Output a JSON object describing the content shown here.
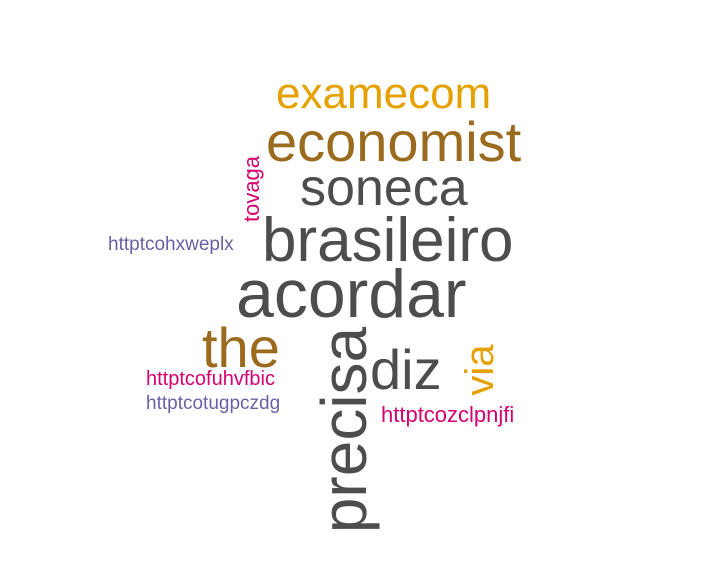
{
  "colors": {
    "gray": "#4d4d4d",
    "brown": "#9a6b1e",
    "gold": "#e5a100",
    "magenta": "#d6006f",
    "purple": "#6c5fa6"
  },
  "words": {
    "examecom": "examecom",
    "economist": "economist",
    "soneca": "soneca",
    "tovaga": "tovaga",
    "httptcohxweplx": "httptcohxweplx",
    "brasileiro": "brasileiro",
    "acordar": "acordar",
    "the": "the",
    "precisa": "precisa",
    "diz": "diz",
    "via": "via",
    "httptcofuhvfbic": "httptcofuhvfbic",
    "httptcotugpczdg": "httptcotugpczdg",
    "httptcozclpnjfi": "httptcozclpnjfi"
  }
}
